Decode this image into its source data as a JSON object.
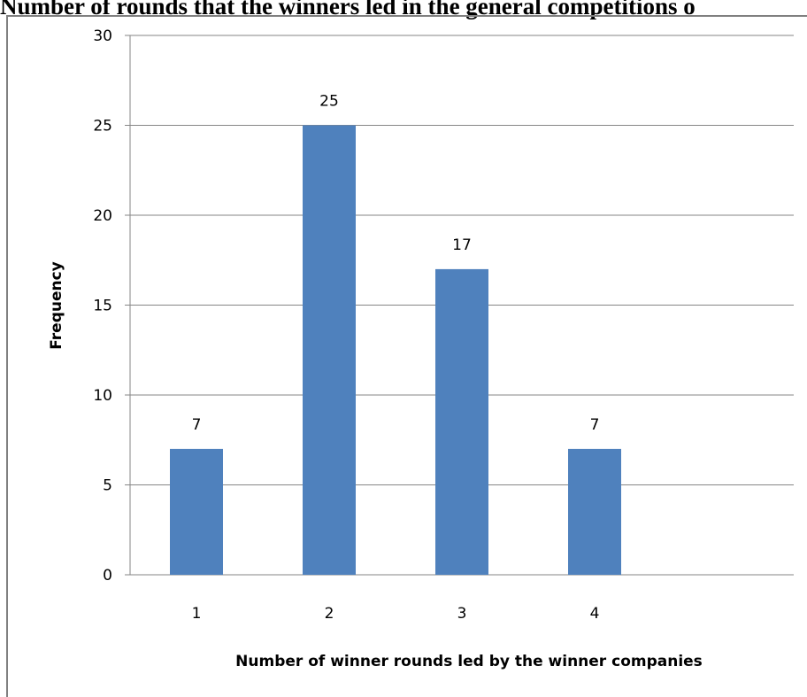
{
  "chart_data": {
    "type": "bar",
    "title": "Number of rounds that the winners led in the general competitions o",
    "categories": [
      "1",
      "2",
      "3",
      "4"
    ],
    "values": [
      7,
      25,
      17,
      7
    ],
    "xlabel": "Number of winner rounds led by the winner companies",
    "ylabel": "Frequency",
    "ylim": [
      0,
      30
    ],
    "yticks": [
      0,
      5,
      10,
      15,
      20,
      25,
      30
    ],
    "grid": true,
    "bar_color": "#4f81bd",
    "grid_color": "#868686"
  }
}
